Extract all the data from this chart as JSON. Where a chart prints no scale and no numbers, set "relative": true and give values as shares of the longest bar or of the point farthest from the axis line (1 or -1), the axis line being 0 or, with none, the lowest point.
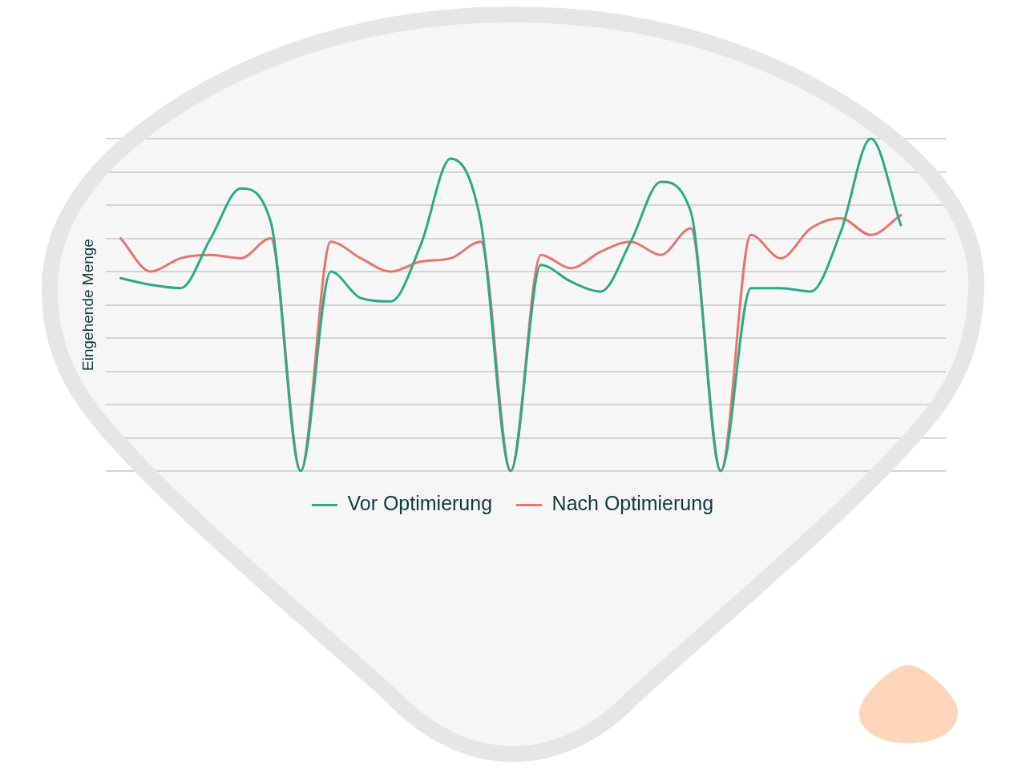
{
  "chart_data": {
    "type": "line",
    "ylabel": "Eingehende Menge",
    "categories": [
      null,
      null,
      null,
      null,
      null,
      null,
      null,
      null,
      null,
      null,
      null,
      null,
      null,
      null,
      null,
      null,
      null,
      null,
      null,
      null,
      null,
      null,
      null,
      null,
      null,
      null,
      null,
      null
    ],
    "relative": true,
    "series": [
      {
        "name": "Vor Optimierung",
        "color": "#2baa84",
        "values": [
          0.58,
          0.56,
          0.55,
          0.7,
          0.85,
          0.75,
          0,
          0.6,
          0.52,
          0.51,
          0.68,
          0.94,
          0.75,
          0,
          0.62,
          0.57,
          0.54,
          0.69,
          0.87,
          0.78,
          0,
          0.55,
          0.55,
          0.54,
          0.72,
          1,
          0.74,
          null
        ]
      },
      {
        "name": "Nach Optimierung",
        "color": "#e8746b",
        "values": [
          0.7,
          0.6,
          0.64,
          0.65,
          0.64,
          0.7,
          0,
          0.69,
          0.64,
          0.6,
          0.63,
          0.64,
          0.69,
          0,
          0.65,
          0.61,
          0.66,
          0.69,
          0.65,
          0.73,
          0,
          0.71,
          0.64,
          0.73,
          0.76,
          0.71,
          0.77,
          null
        ]
      }
    ],
    "grid": "y",
    "legend": "bottom",
    "marker": "none",
    "line_style": "solid"
  }
}
